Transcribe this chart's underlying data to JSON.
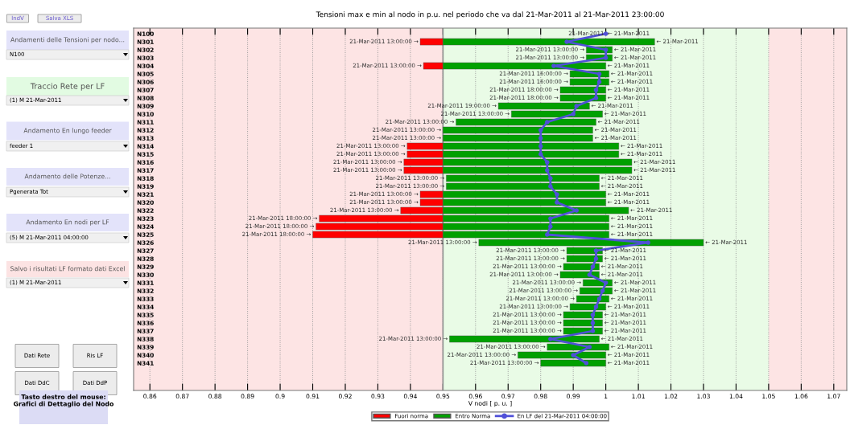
{
  "chart_data": {
    "type": "bar",
    "orientation": "horizontal",
    "title": "Tensioni max e min al nodo in p.u. nel periodo che va dal 21-Mar-2011 al 21-Mar-2011 23:00:00",
    "xlabel": "V nodi [ p. u. ]",
    "categories": [
      "N100",
      "N301",
      "N302",
      "N303",
      "N304",
      "N305",
      "N306",
      "N307",
      "N308",
      "N309",
      "N310",
      "N311",
      "N312",
      "N313",
      "N314",
      "N315",
      "N316",
      "N317",
      "N318",
      "N319",
      "N321",
      "N320",
      "N322",
      "N323",
      "N324",
      "N325",
      "N326",
      "N327",
      "N328",
      "N329",
      "N330",
      "N331",
      "N332",
      "N333",
      "N334",
      "N335",
      "N336",
      "N337",
      "N338",
      "N339",
      "N340",
      "N341"
    ],
    "series": [
      {
        "name": "Fuori norma",
        "color": "#ff0000",
        "base": [
          null,
          0.943,
          null,
          null,
          0.944,
          null,
          null,
          null,
          null,
          null,
          null,
          null,
          null,
          null,
          0.939,
          0.939,
          0.938,
          0.938,
          null,
          null,
          0.943,
          0.943,
          0.937,
          0.912,
          0.911,
          0.91,
          null,
          null,
          null,
          null,
          null,
          null,
          null,
          null,
          null,
          null,
          null,
          null,
          null,
          null,
          null,
          null
        ],
        "values": [
          null,
          0.007,
          null,
          null,
          0.006,
          null,
          null,
          null,
          null,
          null,
          null,
          null,
          null,
          null,
          0.011,
          0.011,
          0.012,
          0.012,
          null,
          null,
          0.007,
          0.007,
          0.013,
          0.038,
          0.039,
          0.04,
          null,
          null,
          null,
          null,
          null,
          null,
          null,
          null,
          null,
          null,
          null,
          null,
          null,
          null,
          null,
          null
        ]
      },
      {
        "name": "Entro Norma",
        "color": "#00a000",
        "base": [
          null,
          0.95,
          0.994,
          0.994,
          0.95,
          0.989,
          0.989,
          0.986,
          0.986,
          0.967,
          0.971,
          0.954,
          0.95,
          0.95,
          0.95,
          0.95,
          0.95,
          0.95,
          0.951,
          0.951,
          0.95,
          0.95,
          0.95,
          0.95,
          0.95,
          0.95,
          0.961,
          0.988,
          0.988,
          0.987,
          0.986,
          0.993,
          0.992,
          0.991,
          0.989,
          0.987,
          0.987,
          0.987,
          0.952,
          0.982,
          0.973,
          0.98
        ],
        "values": [
          null,
          0.065,
          0.008,
          0.008,
          0.05,
          0.012,
          0.012,
          0.014,
          0.014,
          0.028,
          0.028,
          0.043,
          0.046,
          0.046,
          0.054,
          0.054,
          0.058,
          0.058,
          0.047,
          0.047,
          0.05,
          0.05,
          0.057,
          0.051,
          0.051,
          0.051,
          0.069,
          0.011,
          0.011,
          0.011,
          0.012,
          0.009,
          0.01,
          0.01,
          0.011,
          0.012,
          0.012,
          0.012,
          0.046,
          0.019,
          0.027,
          0.02
        ]
      },
      {
        "name": "En LF del 21-Mar-2011 04:00:00",
        "type": "line",
        "color": "#5050d8",
        "marker": "circle",
        "line_style": "solid",
        "values": [
          1.0,
          0.988,
          1.0,
          1.0,
          0.984,
          0.998,
          0.998,
          0.997,
          0.997,
          0.991,
          0.99,
          0.982,
          0.98,
          0.98,
          0.98,
          0.98,
          0.982,
          0.982,
          0.983,
          0.983,
          0.985,
          0.985,
          0.991,
          0.983,
          0.983,
          0.982,
          1.013,
          0.997,
          0.997,
          0.996,
          0.995,
          1.0,
          0.999,
          0.998,
          0.997,
          0.996,
          0.996,
          0.996,
          0.983,
          0.995,
          0.99,
          0.994
        ]
      }
    ],
    "xlim": [
      0.855,
      1.074
    ],
    "xticks": [
      0.86,
      0.87,
      0.88,
      0.89,
      0.9,
      0.91,
      0.92,
      0.93,
      0.94,
      0.95,
      0.96,
      0.97,
      0.98,
      0.99,
      1,
      1.01,
      1.02,
      1.03,
      1.04,
      1.05,
      1.06,
      1.07
    ],
    "grid": "x",
    "legend": "bottom",
    "bands": [
      {
        "axis": "x",
        "from": 0.855,
        "to": 0.95,
        "color": "#fde4e4"
      },
      {
        "axis": "x",
        "from": 0.95,
        "to": 1.05,
        "color": "#e9fbe6"
      },
      {
        "axis": "x",
        "from": 1.05,
        "to": 1.074,
        "color": "#fde4e4"
      }
    ],
    "ref_lines": [
      {
        "axis": "x",
        "value": 0.95,
        "color": "#909090",
        "line_style": "solid"
      }
    ],
    "annotations": [
      "IndV",
      "Salva XLS",
      "Andamenti delle Tensioni per nodo...",
      "N100",
      "Traccio Rete per LF",
      "(1) M 21-Mar-2011",
      "Andamento En lungo feeder",
      "feeder 1",
      "Andamento delle Potenze...",
      "Pgenerata Tot",
      "Andamento En nodi per LF",
      "(5) M 21-Mar-2011 04:00:00",
      "Salvo i risultati LF formato dati Excel",
      "(1) M 21-Mar-2011",
      "Dati Rete",
      "Ris LF",
      "Dati DdC",
      "Dati DdP",
      "Tasto destro del mouse:\nGrafici di Dettaglio del Nodo",
      {
        "text": "21-Mar-2011",
        "x": 1.0,
        "y": "N100"
      },
      {
        "text": "← 21-Mar-2011",
        "x": 1.0,
        "y": "N100"
      },
      {
        "text": "21-Mar-2011 13:00:00 →",
        "x": 0.943,
        "y": "N301"
      },
      {
        "text": "← 21-Mar-2011",
        "x": 1.015,
        "y": "N301"
      },
      {
        "text": "21-Mar-2011 13:00:00 →",
        "x": 0.994,
        "y": "N302"
      },
      {
        "text": "← 21-Mar-2011",
        "x": 1.002,
        "y": "N302"
      },
      {
        "text": "21-Mar-2011 13:00:00 →",
        "x": 0.994,
        "y": "N303"
      },
      {
        "text": "← 21-Mar-2011",
        "x": 1.002,
        "y": "N303"
      },
      {
        "text": "21-Mar-2011 13:00:00 →",
        "x": 0.944,
        "y": "N304"
      },
      {
        "text": "← 21-Mar-2011",
        "x": 1.0,
        "y": "N304"
      },
      {
        "text": "21-Mar-2011 16:00:00 →",
        "x": 0.989,
        "y": "N305"
      },
      {
        "text": "← 21-Mar-2011",
        "x": 1.001,
        "y": "N305"
      },
      {
        "text": "21-Mar-2011 16:00:00 →",
        "x": 0.989,
        "y": "N306"
      },
      {
        "text": "← 21-Mar-2011",
        "x": 1.001,
        "y": "N306"
      },
      {
        "text": "21-Mar-2011 18:00:00 →",
        "x": 0.986,
        "y": "N307"
      },
      {
        "text": "← 21-Mar-2011",
        "x": 1.0,
        "y": "N307"
      },
      {
        "text": "21-Mar-2011 18:00:00 →",
        "x": 0.986,
        "y": "N308"
      },
      {
        "text": "← 21-Mar-2011",
        "x": 1.0,
        "y": "N308"
      },
      {
        "text": "21-Mar-2011 19:00:00 →",
        "x": 0.967,
        "y": "N309"
      },
      {
        "text": "← 21-Mar-2011",
        "x": 0.995,
        "y": "N309"
      },
      {
        "text": "21-Mar-2011 13:00:00 →",
        "x": 0.971,
        "y": "N310"
      },
      {
        "text": "← 21-Mar-2011",
        "x": 0.999,
        "y": "N310"
      },
      {
        "text": "21-Mar-2011 13:00:00 →",
        "x": 0.954,
        "y": "N311"
      },
      {
        "text": "← 21-Mar-2011",
        "x": 0.997,
        "y": "N311"
      },
      {
        "text": "21-Mar-2011 13:00:00 →",
        "x": 0.95,
        "y": "N312"
      },
      {
        "text": "← 21-Mar-2011",
        "x": 0.996,
        "y": "N312"
      },
      {
        "text": "21-Mar-2011 13:00:00 →",
        "x": 0.95,
        "y": "N313"
      },
      {
        "text": "← 21-Mar-2011",
        "x": 0.996,
        "y": "N313"
      },
      {
        "text": "21-Mar-2011 13:00:00 →",
        "x": 0.939,
        "y": "N314"
      },
      {
        "text": "← 21-Mar-2011",
        "x": 1.004,
        "y": "N314"
      },
      {
        "text": "21-Mar-2011 13:00:00 →",
        "x": 0.939,
        "y": "N315"
      },
      {
        "text": "← 21-Mar-2011",
        "x": 1.004,
        "y": "N315"
      },
      {
        "text": "21-Mar-2011 13:00:00 →",
        "x": 0.938,
        "y": "N316"
      },
      {
        "text": "← 21-Mar-2011",
        "x": 1.008,
        "y": "N316"
      },
      {
        "text": "21-Mar-2011 13:00:00 →",
        "x": 0.938,
        "y": "N317"
      },
      {
        "text": "← 21-Mar-2011",
        "x": 1.008,
        "y": "N317"
      },
      {
        "text": "21-Mar-2011 13:00:00 →",
        "x": 0.951,
        "y": "N318"
      },
      {
        "text": "← 21-Mar-2011",
        "x": 0.998,
        "y": "N318"
      },
      {
        "text": "21-Mar-2011 13:00:00 →",
        "x": 0.951,
        "y": "N319"
      },
      {
        "text": "← 21-Mar-2011",
        "x": 0.998,
        "y": "N319"
      },
      {
        "text": "21-Mar-2011 13:00:00 →",
        "x": 0.943,
        "y": "N321"
      },
      {
        "text": "← 21-Mar-2011",
        "x": 1.0,
        "y": "N321"
      },
      {
        "text": "21-Mar-2011 13:00:00 →",
        "x": 0.943,
        "y": "N320"
      },
      {
        "text": "← 21-Mar-2011",
        "x": 1.0,
        "y": "N320"
      },
      {
        "text": "21-Mar-2011 13:00:00 →",
        "x": 0.937,
        "y": "N322"
      },
      {
        "text": "← 21-Mar-2011",
        "x": 1.007,
        "y": "N322"
      },
      {
        "text": "21-Mar-2011 18:00:00 →",
        "x": 0.912,
        "y": "N323"
      },
      {
        "text": "← 21-Mar-2011",
        "x": 1.001,
        "y": "N323"
      },
      {
        "text": "21-Mar-2011 18:00:00 →",
        "x": 0.911,
        "y": "N324"
      },
      {
        "text": "← 21-Mar-2011",
        "x": 1.001,
        "y": "N324"
      },
      {
        "text": "21-Mar-2011 18:00:00 →",
        "x": 0.91,
        "y": "N325"
      },
      {
        "text": "← 21-Mar-2011",
        "x": 1.001,
        "y": "N325"
      },
      {
        "text": "21-Mar-2011 13:00:00 →",
        "x": 0.961,
        "y": "N326"
      },
      {
        "text": "← 21-Mar-2011",
        "x": 1.03,
        "y": "N326"
      },
      {
        "text": "21-Mar-2011 13:00:00 →",
        "x": 0.988,
        "y": "N327"
      },
      {
        "text": "← 21-Mar-2011",
        "x": 0.999,
        "y": "N327"
      },
      {
        "text": "21-Mar-2011 13:00:00 →",
        "x": 0.988,
        "y": "N328"
      },
      {
        "text": "← 21-Mar-2011",
        "x": 0.999,
        "y": "N328"
      },
      {
        "text": "21-Mar-2011 13:00:00 →",
        "x": 0.987,
        "y": "N329"
      },
      {
        "text": "← 21-Mar-2011",
        "x": 0.998,
        "y": "N329"
      },
      {
        "text": "21-Mar-2011 13:00:00 →",
        "x": 0.986,
        "y": "N330"
      },
      {
        "text": "← 21-Mar-2011",
        "x": 0.998,
        "y": "N330"
      },
      {
        "text": "21-Mar-2011 13:00:00 →",
        "x": 0.993,
        "y": "N331"
      },
      {
        "text": "← 21-Mar-2011",
        "x": 1.002,
        "y": "N331"
      },
      {
        "text": "21-Mar-2011 13:00:00 →",
        "x": 0.992,
        "y": "N332"
      },
      {
        "text": "← 21-Mar-2011",
        "x": 1.002,
        "y": "N332"
      },
      {
        "text": "21-Mar-2011 13:00:00 →",
        "x": 0.991,
        "y": "N333"
      },
      {
        "text": "← 21-Mar-2011",
        "x": 1.001,
        "y": "N333"
      },
      {
        "text": "21-Mar-2011 13:00:00 →",
        "x": 0.989,
        "y": "N334"
      },
      {
        "text": "← 21-Mar-2011",
        "x": 1.0,
        "y": "N334"
      },
      {
        "text": "21-Mar-2011 13:00:00 →",
        "x": 0.987,
        "y": "N335"
      },
      {
        "text": "← 21-Mar-2011",
        "x": 0.999,
        "y": "N335"
      },
      {
        "text": "21-Mar-2011 13:00:00 →",
        "x": 0.987,
        "y": "N336"
      },
      {
        "text": "← 21-Mar-2011",
        "x": 0.999,
        "y": "N336"
      },
      {
        "text": "21-Mar-2011 13:00:00 →",
        "x": 0.987,
        "y": "N337"
      },
      {
        "text": "← 21-Mar-2011",
        "x": 0.999,
        "y": "N337"
      },
      {
        "text": "21-Mar-2011 13:00:00 →",
        "x": 0.952,
        "y": "N338"
      },
      {
        "text": "← 21-Mar-2011",
        "x": 0.998,
        "y": "N338"
      },
      {
        "text": "21-Mar-2011 13:00:00 →",
        "x": 0.982,
        "y": "N339"
      },
      {
        "text": "← 21-Mar-2011",
        "x": 1.001,
        "y": "N339"
      },
      {
        "text": "21-Mar-2011 13:00:00 →",
        "x": 0.973,
        "y": "N340"
      },
      {
        "text": "← 21-Mar-2011",
        "x": 1.0,
        "y": "N340"
      },
      {
        "text": "21-Mar-2011 13:00:00 →",
        "x": 0.98,
        "y": "N341"
      },
      {
        "text": "← 21-Mar-2011",
        "x": 1.0,
        "y": "N341"
      }
    ]
  }
}
